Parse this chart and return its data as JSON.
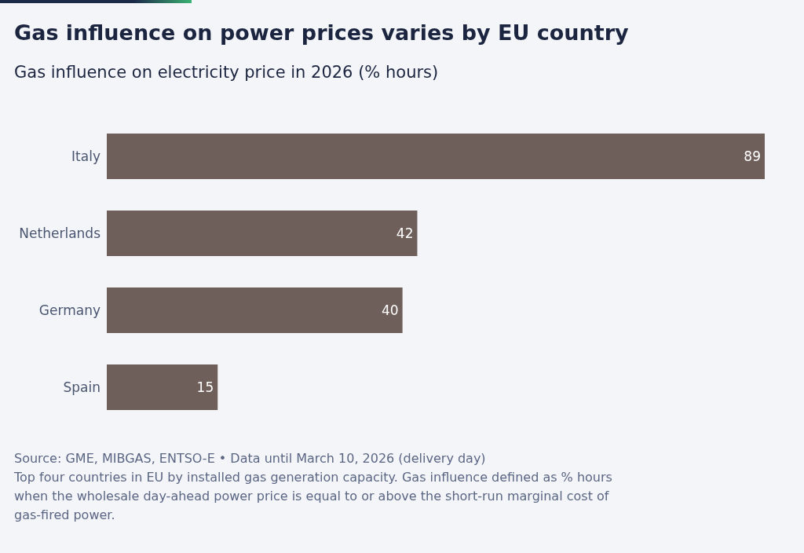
{
  "chart_data": {
    "type": "bar",
    "orientation": "horizontal",
    "title": "Gas influence on power prices varies by EU country",
    "subtitle": "Gas influence on electricity price in 2026 (% hours)",
    "categories": [
      "Italy",
      "Netherlands",
      "Germany",
      "Spain"
    ],
    "values": [
      89,
      42,
      40,
      15
    ],
    "color": "#6f5f5a",
    "data_labels": true,
    "grid": false,
    "legend": false,
    "annotations": [
      "Source: GME, MIBGAS, ENTSO-E • Data until March 10, 2026 (delivery day)",
      "Top four countries in EU by installed gas generation capacity. Gas influence defined as % hours when the wholesale day-ahead power price is equal to or above the short-run marginal cost of gas-fired power."
    ]
  }
}
